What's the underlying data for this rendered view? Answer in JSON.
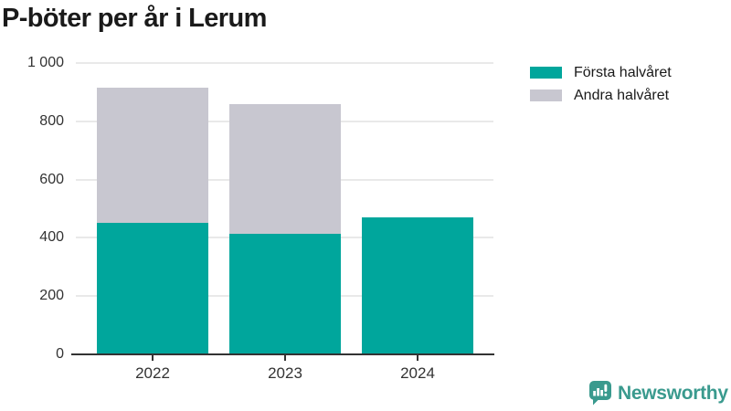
{
  "title": "P-böter per år i Lerum",
  "colors": {
    "first_half": "#00a69c",
    "second_half": "#c8c7d0",
    "axis": "#333333",
    "grid": "#e9e9e9",
    "title_text": "#1a1a1a",
    "tick_text": "#333333",
    "logo": "#3a9a8e",
    "background": "#ffffff"
  },
  "legend": {
    "items": [
      {
        "label": "Första halvåret",
        "color_key": "first_half"
      },
      {
        "label": "Andra halvåret",
        "color_key": "second_half"
      }
    ]
  },
  "chart_data": {
    "type": "bar",
    "stacked": true,
    "title": "P-böter per år i Lerum",
    "categories": [
      "2022",
      "2023",
      "2024"
    ],
    "series": [
      {
        "name": "Första halvåret",
        "color": "#00a69c",
        "values": [
          450,
          415,
          470
        ]
      },
      {
        "name": "Andra halvåret",
        "color": "#c8c7d0",
        "values": [
          465,
          445,
          0
        ]
      }
    ],
    "totals": [
      915,
      860,
      470
    ],
    "xlabel": "",
    "ylabel": "",
    "ylim": [
      0,
      1000
    ],
    "yticks": [
      0,
      200,
      400,
      600,
      800,
      1000
    ],
    "ytick_labels": [
      "0",
      "200",
      "400",
      "600",
      "800",
      "1 000"
    ],
    "grid": true,
    "legend_position": "top-right"
  },
  "branding": {
    "logo_text": "Newsworthy",
    "logo_icon": "newsworthy-speech-bubble-bar-chart-icon"
  }
}
